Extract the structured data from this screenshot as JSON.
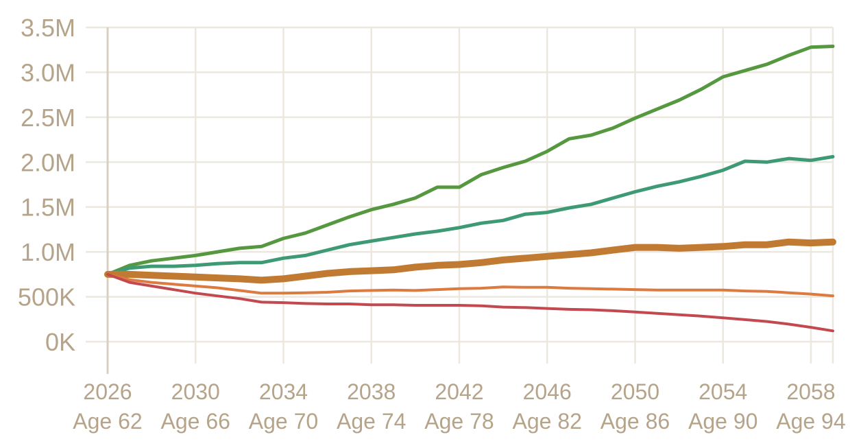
{
  "chart_data": {
    "type": "line",
    "title": "",
    "xlabel": "",
    "ylabel": "",
    "xlim": [
      2026,
      2059
    ],
    "ylim": [
      0,
      3500000
    ],
    "grid": true,
    "legend": "none",
    "y_ticks": [
      {
        "value": 0,
        "label": "0K"
      },
      {
        "value": 500000,
        "label": "500K"
      },
      {
        "value": 1000000,
        "label": "1.0M"
      },
      {
        "value": 1500000,
        "label": "1.5M"
      },
      {
        "value": 2000000,
        "label": "2.0M"
      },
      {
        "value": 2500000,
        "label": "2.5M"
      },
      {
        "value": 3000000,
        "label": "3.0M"
      },
      {
        "value": 3500000,
        "label": "3.5M"
      }
    ],
    "x_ticks": [
      {
        "value": 2026,
        "year": "2026",
        "age": "Age 62"
      },
      {
        "value": 2030,
        "year": "2030",
        "age": "Age 66"
      },
      {
        "value": 2034,
        "year": "2034",
        "age": "Age 70"
      },
      {
        "value": 2038,
        "year": "2038",
        "age": "Age 74"
      },
      {
        "value": 2042,
        "year": "2042",
        "age": "Age 78"
      },
      {
        "value": 2046,
        "year": "2046",
        "age": "Age 82"
      },
      {
        "value": 2050,
        "year": "2050",
        "age": "Age 86"
      },
      {
        "value": 2054,
        "year": "2054",
        "age": "Age 90"
      },
      {
        "value": 2058,
        "year": "2058",
        "age": "Age 94"
      }
    ],
    "x_grid_extra": [
      2059
    ],
    "series": [
      {
        "color": "#55983f",
        "width": 5,
        "x": [
          2026,
          2027,
          2028,
          2029,
          2030,
          2031,
          2032,
          2033,
          2034,
          2035,
          2036,
          2037,
          2038,
          2039,
          2040,
          2041,
          2042,
          2043,
          2044,
          2045,
          2046,
          2047,
          2048,
          2049,
          2050,
          2051,
          2052,
          2053,
          2054,
          2055,
          2056,
          2057,
          2058,
          2059
        ],
        "y": [
          750000,
          850000,
          900000,
          930000,
          960000,
          1000000,
          1040000,
          1060000,
          1150000,
          1210000,
          1300000,
          1390000,
          1470000,
          1530000,
          1600000,
          1720000,
          1720000,
          1860000,
          1940000,
          2010000,
          2120000,
          2260000,
          2300000,
          2380000,
          2490000,
          2590000,
          2690000,
          2810000,
          2950000,
          3020000,
          3090000,
          3190000,
          3280000,
          3290000
        ]
      },
      {
        "color": "#3d9a74",
        "width": 5,
        "x": [
          2026,
          2027,
          2028,
          2029,
          2030,
          2031,
          2032,
          2033,
          2034,
          2035,
          2036,
          2037,
          2038,
          2039,
          2040,
          2041,
          2042,
          2043,
          2044,
          2045,
          2046,
          2047,
          2048,
          2049,
          2050,
          2051,
          2052,
          2053,
          2054,
          2055,
          2056,
          2057,
          2058,
          2059
        ],
        "y": [
          750000,
          820000,
          840000,
          840000,
          850000,
          870000,
          880000,
          880000,
          930000,
          960000,
          1020000,
          1080000,
          1120000,
          1160000,
          1200000,
          1230000,
          1270000,
          1320000,
          1350000,
          1420000,
          1440000,
          1490000,
          1530000,
          1600000,
          1670000,
          1730000,
          1780000,
          1840000,
          1910000,
          2010000,
          2000000,
          2040000,
          2020000,
          2060000
        ]
      },
      {
        "color": "#c07a32",
        "width": 10,
        "x": [
          2026,
          2027,
          2028,
          2029,
          2030,
          2031,
          2032,
          2033,
          2034,
          2035,
          2036,
          2037,
          2038,
          2039,
          2040,
          2041,
          2042,
          2043,
          2044,
          2045,
          2046,
          2047,
          2048,
          2049,
          2050,
          2051,
          2052,
          2053,
          2054,
          2055,
          2056,
          2057,
          2058,
          2059
        ],
        "y": [
          750000,
          750000,
          740000,
          730000,
          720000,
          710000,
          700000,
          685000,
          700000,
          730000,
          760000,
          780000,
          790000,
          800000,
          830000,
          850000,
          860000,
          880000,
          910000,
          930000,
          950000,
          970000,
          990000,
          1020000,
          1050000,
          1050000,
          1040000,
          1050000,
          1060000,
          1080000,
          1080000,
          1110000,
          1100000,
          1110000
        ]
      },
      {
        "color": "#dd7a3f",
        "width": 4,
        "x": [
          2026,
          2027,
          2028,
          2029,
          2030,
          2031,
          2032,
          2033,
          2034,
          2035,
          2036,
          2037,
          2038,
          2039,
          2040,
          2041,
          2042,
          2043,
          2044,
          2045,
          2046,
          2047,
          2048,
          2049,
          2050,
          2051,
          2052,
          2053,
          2054,
          2055,
          2056,
          2057,
          2058,
          2059
        ],
        "y": [
          750000,
          690000,
          660000,
          640000,
          620000,
          600000,
          570000,
          540000,
          540000,
          545000,
          550000,
          565000,
          570000,
          575000,
          570000,
          580000,
          590000,
          595000,
          610000,
          605000,
          605000,
          595000,
          590000,
          585000,
          580000,
          575000,
          575000,
          575000,
          575000,
          565000,
          560000,
          545000,
          530000,
          510000
        ]
      },
      {
        "color": "#c2494f",
        "width": 4,
        "x": [
          2026,
          2027,
          2028,
          2029,
          2030,
          2031,
          2032,
          2033,
          2034,
          2035,
          2036,
          2037,
          2038,
          2039,
          2040,
          2041,
          2042,
          2043,
          2044,
          2045,
          2046,
          2047,
          2048,
          2049,
          2050,
          2051,
          2052,
          2053,
          2054,
          2055,
          2056,
          2057,
          2058,
          2059
        ],
        "y": [
          750000,
          660000,
          620000,
          580000,
          540000,
          510000,
          480000,
          440000,
          435000,
          425000,
          420000,
          420000,
          410000,
          410000,
          405000,
          405000,
          405000,
          400000,
          385000,
          380000,
          370000,
          360000,
          355000,
          345000,
          330000,
          315000,
          300000,
          285000,
          265000,
          245000,
          225000,
          195000,
          160000,
          120000
        ]
      }
    ]
  }
}
